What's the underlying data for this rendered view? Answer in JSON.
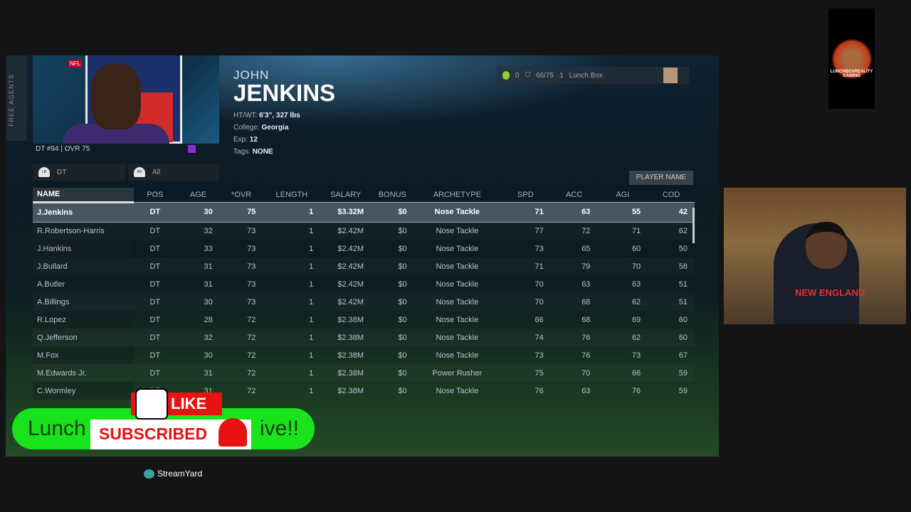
{
  "sidebar": {
    "tab_label": "FREE AGENTS"
  },
  "player": {
    "first_name": "JOHN",
    "last_name": "JENKINS",
    "card_info": "DT #94 | OVR 75",
    "league_logo": "NFL",
    "details": [
      {
        "label": "HT/WT:",
        "value": "6'3\", 327 lbs"
      },
      {
        "label": "College:",
        "value": "Georgia"
      },
      {
        "label": "Exp:",
        "value": "12"
      },
      {
        "label": "Tags:",
        "value": "NONE"
      }
    ]
  },
  "filters": [
    {
      "icon": "LB",
      "label": "DT"
    },
    {
      "icon": "RB",
      "label": "All"
    }
  ],
  "hud": {
    "coins": "0",
    "roster": "66/75",
    "level": "1",
    "user": "Lunch Box"
  },
  "sort_button": "PLAYER NAME",
  "table": {
    "columns": [
      "NAME",
      "POS",
      "AGE",
      "*OVR",
      "LENGTH",
      "SALARY",
      "BONUS",
      "ARCHETYPE",
      "SPD",
      "ACC",
      "AGI",
      "COD"
    ],
    "rows": [
      [
        "J.Jenkins",
        "DT",
        "30",
        "75",
        "1",
        "$3.32M",
        "$0",
        "Nose Tackle",
        "71",
        "63",
        "55",
        "42"
      ],
      [
        "R.Robertson-Harris",
        "DT",
        "32",
        "73",
        "1",
        "$2.42M",
        "$0",
        "Nose Tackle",
        "77",
        "72",
        "71",
        "62"
      ],
      [
        "J.Hankins",
        "DT",
        "33",
        "73",
        "1",
        "$2.42M",
        "$0",
        "Nose Tackle",
        "73",
        "65",
        "60",
        "50"
      ],
      [
        "J.Bullard",
        "DT",
        "31",
        "73",
        "1",
        "$2.42M",
        "$0",
        "Nose Tackle",
        "71",
        "79",
        "70",
        "58"
      ],
      [
        "A.Butler",
        "DT",
        "31",
        "73",
        "1",
        "$2.42M",
        "$0",
        "Nose Tackle",
        "70",
        "63",
        "63",
        "51"
      ],
      [
        "A.Billings",
        "DT",
        "30",
        "73",
        "1",
        "$2.42M",
        "$0",
        "Nose Tackle",
        "70",
        "68",
        "62",
        "51"
      ],
      [
        "R.Lopez",
        "DT",
        "28",
        "72",
        "1",
        "$2.38M",
        "$0",
        "Nose Tackle",
        "66",
        "68",
        "69",
        "60"
      ],
      [
        "Q.Jefferson",
        "DT",
        "32",
        "72",
        "1",
        "$2.38M",
        "$0",
        "Nose Tackle",
        "74",
        "76",
        "62",
        "60"
      ],
      [
        "M.Fox",
        "DT",
        "30",
        "72",
        "1",
        "$2.38M",
        "$0",
        "Nose Tackle",
        "73",
        "76",
        "73",
        "67"
      ],
      [
        "M.Edwards Jr.",
        "DT",
        "31",
        "72",
        "1",
        "$2.38M",
        "$0",
        "Power Rusher",
        "75",
        "70",
        "66",
        "59"
      ],
      [
        "C.Wormley",
        "DT",
        "31",
        "72",
        "1",
        "$2.38M",
        "$0",
        "Nose Tackle",
        "76",
        "63",
        "76",
        "59"
      ]
    ]
  },
  "overlay": {
    "banner_start": "Lunch",
    "banner_end": "ive!!",
    "like": "LIKE",
    "subscribed": "SUBSCRIBED",
    "streamyard": "StreamYard",
    "logo_text": "LUNCHBOXREALITY GAMING",
    "webcam_shirt": "NEW ENGLAND"
  },
  "colors": {
    "banner": "#19e31a",
    "like_red": "#e81212"
  }
}
